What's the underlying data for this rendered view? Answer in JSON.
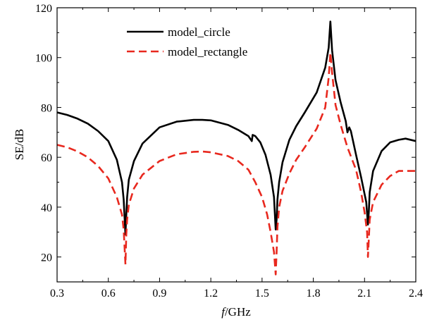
{
  "chart_data": {
    "type": "line",
    "title": "",
    "xlabel_italic": "f",
    "xlabel_rest": "/GHz",
    "ylabel": "SE/dB",
    "xlim": [
      0.3,
      2.4
    ],
    "ylim": [
      10,
      120
    ],
    "xticks": [
      0.3,
      0.6,
      0.9,
      1.2,
      1.5,
      1.8,
      2.1,
      2.4
    ],
    "xtick_labels": [
      "0.3",
      "0.6",
      "0.9",
      "1.2",
      "1.5",
      "1.8",
      "2.1",
      "2.4"
    ],
    "yticks": [
      20,
      40,
      60,
      80,
      100,
      120
    ],
    "ytick_labels": [
      "20",
      "40",
      "60",
      "80",
      "100",
      "120"
    ],
    "grid": false,
    "legend_position": "top-center",
    "series": [
      {
        "name": "model_circle",
        "color": "#000000",
        "dash": "solid",
        "x": [
          0.3,
          0.36,
          0.42,
          0.48,
          0.54,
          0.6,
          0.65,
          0.68,
          0.69,
          0.7,
          0.705,
          0.71,
          0.72,
          0.75,
          0.8,
          0.9,
          1.0,
          1.1,
          1.15,
          1.2,
          1.3,
          1.36,
          1.42,
          1.44,
          1.445,
          1.46,
          1.49,
          1.52,
          1.55,
          1.57,
          1.58,
          1.585,
          1.59,
          1.6,
          1.62,
          1.66,
          1.7,
          1.75,
          1.82,
          1.87,
          1.89,
          1.9,
          1.91,
          1.93,
          1.96,
          1.99,
          2.0,
          2.01,
          2.02,
          2.05,
          2.08,
          2.11,
          2.12,
          2.125,
          2.13,
          2.15,
          2.2,
          2.25,
          2.3,
          2.34,
          2.4
        ],
        "y": [
          78,
          77,
          75.5,
          73.5,
          70.5,
          66.5,
          59,
          50,
          43,
          29,
          37,
          44,
          51,
          58.5,
          65.5,
          72,
          74.3,
          75,
          75,
          74.8,
          73,
          71,
          68.5,
          66.5,
          69,
          68.5,
          66,
          61,
          53,
          44,
          31,
          35,
          43,
          50,
          58,
          67,
          72.5,
          78,
          86,
          96,
          104,
          114.5,
          103,
          91,
          82,
          74.5,
          70,
          72,
          70.5,
          61,
          52,
          42,
          33,
          38,
          46,
          54.5,
          62.5,
          66,
          67,
          67.5,
          66.5
        ]
      },
      {
        "name": "model_rectangle",
        "color": "#e8281e",
        "dash": "dashed",
        "x": [
          0.3,
          0.36,
          0.42,
          0.48,
          0.54,
          0.6,
          0.65,
          0.68,
          0.69,
          0.7,
          0.705,
          0.71,
          0.72,
          0.75,
          0.8,
          0.9,
          1.0,
          1.1,
          1.15,
          1.2,
          1.3,
          1.36,
          1.42,
          1.46,
          1.5,
          1.53,
          1.55,
          1.57,
          1.58,
          1.585,
          1.59,
          1.6,
          1.62,
          1.66,
          1.7,
          1.75,
          1.82,
          1.87,
          1.89,
          1.9,
          1.91,
          1.93,
          1.96,
          2.0,
          2.05,
          2.08,
          2.1,
          2.115,
          2.12,
          2.125,
          2.13,
          2.15,
          2.2,
          2.25,
          2.3,
          2.34,
          2.4
        ],
        "y": [
          65,
          64,
          62.3,
          60,
          56.5,
          51.5,
          44,
          37,
          31,
          17,
          29,
          35,
          41,
          47.5,
          53,
          58.5,
          61.2,
          62.2,
          62.3,
          62,
          60.5,
          58.5,
          55,
          50,
          44,
          37,
          30,
          22,
          13,
          22,
          32,
          40,
          46.5,
          53.5,
          59,
          64,
          71.5,
          80,
          92,
          102,
          94,
          81,
          73,
          64,
          55,
          46,
          38,
          30,
          20,
          27,
          35,
          42,
          49,
          52.5,
          54.5,
          54.5,
          54.5
        ]
      }
    ]
  }
}
